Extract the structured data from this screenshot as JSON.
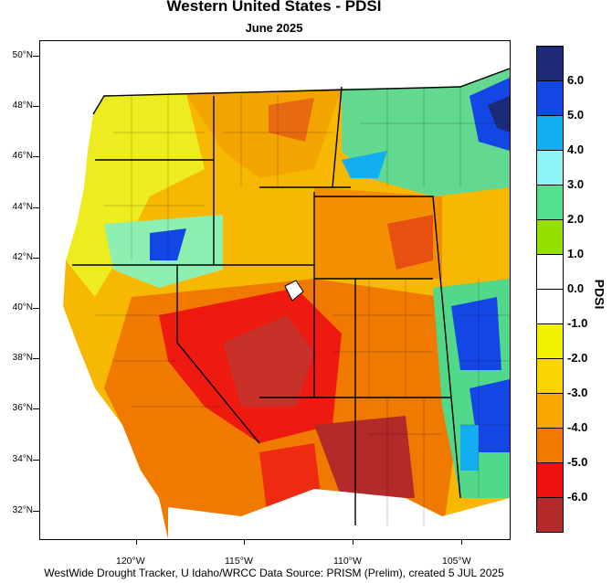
{
  "title": "Western United States - PDSI",
  "subtitle": "June 2025",
  "footer": "WestWide Drought Tracker, U Idaho/WRCC Data Source: PRISM (Prelim), created  5 JUL 2025",
  "colorbar_title": "PDSI",
  "lat_labels": [
    "50°N",
    "48°N",
    "46°N",
    "44°N",
    "42°N",
    "40°N",
    "38°N",
    "36°N",
    "34°N",
    "32°N"
  ],
  "lon_labels": [
    "120°W",
    "115°W",
    "110°W",
    "105°W"
  ],
  "colorbar": [
    {
      "label": "6.0",
      "color": "#1c2a78"
    },
    {
      "label": "5.0",
      "color": "#1446e6"
    },
    {
      "label": "4.0",
      "color": "#12aef0"
    },
    {
      "label": "3.0",
      "color": "#8ef4f8"
    },
    {
      "label": "2.0",
      "color": "#52e08e"
    },
    {
      "label": "1.0",
      "color": "#94e000"
    },
    {
      "label": "0.0",
      "color": "#ffffff"
    },
    {
      "label": "-1.0",
      "color": "#ffffff"
    },
    {
      "label": "-2.0",
      "color": "#f2f200"
    },
    {
      "label": "-3.0",
      "color": "#f8d400"
    },
    {
      "label": "-4.0",
      "color": "#f8a800"
    },
    {
      "label": "-5.0",
      "color": "#f07a00"
    },
    {
      "label": "-6.0",
      "color": "#ee1010"
    },
    {
      "label": "",
      "color": "#b22a2a"
    }
  ],
  "map_data": {
    "region": "Western United States",
    "variable": "PDSI",
    "period": "June 2025",
    "lat_range": [
      31,
      50.5
    ],
    "lon_range": [
      -124.5,
      -102.5
    ],
    "pattern": "Drought (orange-red) across Southwest and Great Basin; wet anomalies (blue) in NE Montana, E Colorado and New Mexico plains, S Oregon"
  }
}
